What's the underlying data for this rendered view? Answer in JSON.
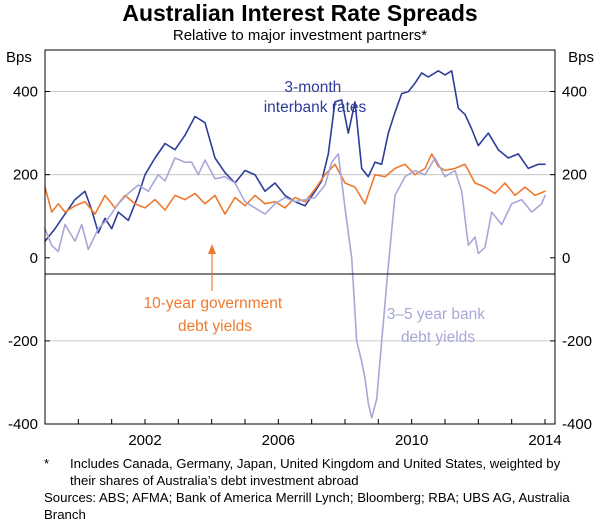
{
  "chart_data": {
    "type": "line",
    "title": "Australian Interest Rate Spreads",
    "subtitle": "Relative to major investment partners*",
    "ylabel_left": "Bps",
    "ylabel_right": "Bps",
    "ylim": [
      -400,
      500
    ],
    "xlim": [
      1999.0,
      2014.3
    ],
    "yticks": [
      -400,
      -200,
      0,
      200,
      400
    ],
    "ytick_labels": [
      "-400",
      "-200",
      "0",
      "200",
      "400"
    ],
    "xticks": [
      2002,
      2006,
      2010,
      2014
    ],
    "xtick_labels": [
      "2002",
      "2006",
      "2010",
      "2014"
    ],
    "grid": "horizontal",
    "series": [
      {
        "name": "3-month interbank rates",
        "color": "#2e3d98",
        "points": [
          [
            1999.0,
            40
          ],
          [
            1999.3,
            70
          ],
          [
            1999.6,
            105
          ],
          [
            1999.9,
            140
          ],
          [
            2000.2,
            160
          ],
          [
            2000.4,
            115
          ],
          [
            2000.6,
            60
          ],
          [
            2000.8,
            95
          ],
          [
            2001.0,
            70
          ],
          [
            2001.2,
            110
          ],
          [
            2001.5,
            90
          ],
          [
            2001.8,
            150
          ],
          [
            2002.0,
            200
          ],
          [
            2002.3,
            240
          ],
          [
            2002.6,
            275
          ],
          [
            2002.9,
            260
          ],
          [
            2003.2,
            295
          ],
          [
            2003.5,
            340
          ],
          [
            2003.8,
            325
          ],
          [
            2004.1,
            240
          ],
          [
            2004.4,
            205
          ],
          [
            2004.7,
            180
          ],
          [
            2005.0,
            210
          ],
          [
            2005.3,
            200
          ],
          [
            2005.6,
            160
          ],
          [
            2005.9,
            180
          ],
          [
            2006.2,
            150
          ],
          [
            2006.5,
            135
          ],
          [
            2006.8,
            125
          ],
          [
            2007.1,
            160
          ],
          [
            2007.3,
            185
          ],
          [
            2007.5,
            250
          ],
          [
            2007.7,
            375
          ],
          [
            2007.9,
            380
          ],
          [
            2008.1,
            300
          ],
          [
            2008.3,
            375
          ],
          [
            2008.5,
            215
          ],
          [
            2008.7,
            195
          ],
          [
            2008.9,
            230
          ],
          [
            2009.1,
            225
          ],
          [
            2009.3,
            300
          ],
          [
            2009.5,
            350
          ],
          [
            2009.7,
            395
          ],
          [
            2009.9,
            400
          ],
          [
            2010.1,
            420
          ],
          [
            2010.3,
            445
          ],
          [
            2010.5,
            435
          ],
          [
            2010.8,
            450
          ],
          [
            2011.0,
            440
          ],
          [
            2011.2,
            450
          ],
          [
            2011.4,
            360
          ],
          [
            2011.6,
            345
          ],
          [
            2011.8,
            310
          ],
          [
            2012.0,
            270
          ],
          [
            2012.3,
            300
          ],
          [
            2012.6,
            260
          ],
          [
            2012.9,
            240
          ],
          [
            2013.2,
            250
          ],
          [
            2013.5,
            215
          ],
          [
            2013.8,
            225
          ],
          [
            2014.0,
            225
          ]
        ]
      },
      {
        "name": "10-year government debt yields",
        "color": "#ee7a2f",
        "points": [
          [
            1999.0,
            170
          ],
          [
            1999.2,
            110
          ],
          [
            1999.4,
            130
          ],
          [
            1999.6,
            110
          ],
          [
            1999.9,
            125
          ],
          [
            2000.2,
            135
          ],
          [
            2000.5,
            105
          ],
          [
            2000.8,
            150
          ],
          [
            2001.1,
            120
          ],
          [
            2001.4,
            150
          ],
          [
            2001.7,
            130
          ],
          [
            2002.0,
            120
          ],
          [
            2002.3,
            140
          ],
          [
            2002.6,
            115
          ],
          [
            2002.9,
            150
          ],
          [
            2003.2,
            140
          ],
          [
            2003.5,
            155
          ],
          [
            2003.8,
            130
          ],
          [
            2004.1,
            150
          ],
          [
            2004.4,
            105
          ],
          [
            2004.7,
            145
          ],
          [
            2005.0,
            125
          ],
          [
            2005.3,
            150
          ],
          [
            2005.6,
            130
          ],
          [
            2005.9,
            135
          ],
          [
            2006.2,
            120
          ],
          [
            2006.5,
            145
          ],
          [
            2006.8,
            135
          ],
          [
            2007.1,
            165
          ],
          [
            2007.4,
            200
          ],
          [
            2007.7,
            225
          ],
          [
            2008.0,
            180
          ],
          [
            2008.3,
            170
          ],
          [
            2008.6,
            130
          ],
          [
            2008.9,
            200
          ],
          [
            2009.2,
            195
          ],
          [
            2009.5,
            215
          ],
          [
            2009.8,
            225
          ],
          [
            2010.1,
            200
          ],
          [
            2010.4,
            215
          ],
          [
            2010.6,
            250
          ],
          [
            2010.8,
            220
          ],
          [
            2011.0,
            210
          ],
          [
            2011.3,
            215
          ],
          [
            2011.6,
            225
          ],
          [
            2011.9,
            180
          ],
          [
            2012.2,
            170
          ],
          [
            2012.5,
            155
          ],
          [
            2012.8,
            180
          ],
          [
            2013.1,
            150
          ],
          [
            2013.4,
            170
          ],
          [
            2013.7,
            150
          ],
          [
            2014.0,
            160
          ]
        ]
      },
      {
        "name": "3–5 year bank debt yields",
        "color": "#a8a8d8",
        "points": [
          [
            1999.0,
            70
          ],
          [
            1999.2,
            30
          ],
          [
            1999.4,
            15
          ],
          [
            1999.6,
            80
          ],
          [
            1999.9,
            40
          ],
          [
            2000.1,
            80
          ],
          [
            2000.3,
            20
          ],
          [
            2000.6,
            70
          ],
          [
            2000.9,
            95
          ],
          [
            2001.2,
            130
          ],
          [
            2001.5,
            155
          ],
          [
            2001.8,
            175
          ],
          [
            2002.1,
            160
          ],
          [
            2002.4,
            200
          ],
          [
            2002.6,
            185
          ],
          [
            2002.9,
            240
          ],
          [
            2003.2,
            230
          ],
          [
            2003.4,
            230
          ],
          [
            2003.6,
            200
          ],
          [
            2003.8,
            235
          ],
          [
            2004.1,
            190
          ],
          [
            2004.4,
            195
          ],
          [
            2004.7,
            180
          ],
          [
            2005.0,
            135
          ],
          [
            2005.3,
            120
          ],
          [
            2005.6,
            105
          ],
          [
            2005.9,
            130
          ],
          [
            2006.2,
            145
          ],
          [
            2006.5,
            135
          ],
          [
            2006.8,
            140
          ],
          [
            2007.1,
            145
          ],
          [
            2007.4,
            175
          ],
          [
            2007.6,
            230
          ],
          [
            2007.8,
            250
          ],
          [
            2008.0,
            120
          ],
          [
            2008.2,
            0
          ],
          [
            2008.35,
            -200
          ],
          [
            2008.5,
            -250
          ],
          [
            2008.6,
            -290
          ],
          [
            2008.7,
            -350
          ],
          [
            2008.8,
            -385
          ],
          [
            2008.95,
            -340
          ],
          [
            2009.1,
            -200
          ],
          [
            2009.3,
            -20
          ],
          [
            2009.5,
            150
          ],
          [
            2009.8,
            195
          ],
          [
            2010.1,
            210
          ],
          [
            2010.4,
            200
          ],
          [
            2010.7,
            240
          ],
          [
            2011.0,
            195
          ],
          [
            2011.3,
            210
          ],
          [
            2011.5,
            160
          ],
          [
            2011.7,
            30
          ],
          [
            2011.9,
            50
          ],
          [
            2012.0,
            10
          ],
          [
            2012.2,
            25
          ],
          [
            2012.4,
            110
          ],
          [
            2012.7,
            80
          ],
          [
            2013.0,
            130
          ],
          [
            2013.3,
            140
          ],
          [
            2013.6,
            110
          ],
          [
            2013.9,
            130
          ],
          [
            2014.0,
            150
          ]
        ]
      }
    ],
    "annotations": [
      {
        "series": "3-month interbank rates",
        "lines": [
          "3-month",
          "interbank rates"
        ]
      },
      {
        "series": "10-year government debt yields",
        "lines": [
          "10-year government",
          "debt yields"
        ]
      },
      {
        "series": "3–5 year bank debt yields",
        "lines": [
          "3–5 year bank",
          "debt yields"
        ]
      }
    ]
  },
  "footnote": {
    "mark": "*",
    "text": "Includes Canada, Germany, Japan, United Kingdom and United States, weighted by their shares of Australia’s debt investment abroad"
  },
  "sources": "Sources:  ABS; AFMA; Bank of America Merrill Lynch; Bloomberg; RBA; UBS AG, Australia Branch"
}
